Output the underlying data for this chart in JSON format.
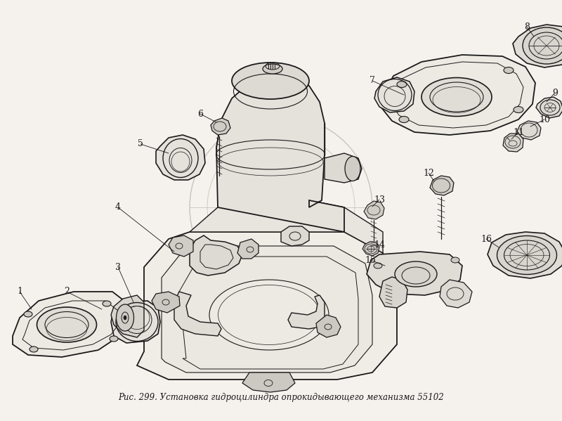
{
  "title": "Рис. 299. Установка гидроцилиндра опрокидывающего механизма 55102",
  "title_fontsize": 8.5,
  "bg_color": "#f5f2ee",
  "line_color": "#1a1a1a",
  "figsize": [
    8.0,
    5.99
  ],
  "dpi": 100
}
